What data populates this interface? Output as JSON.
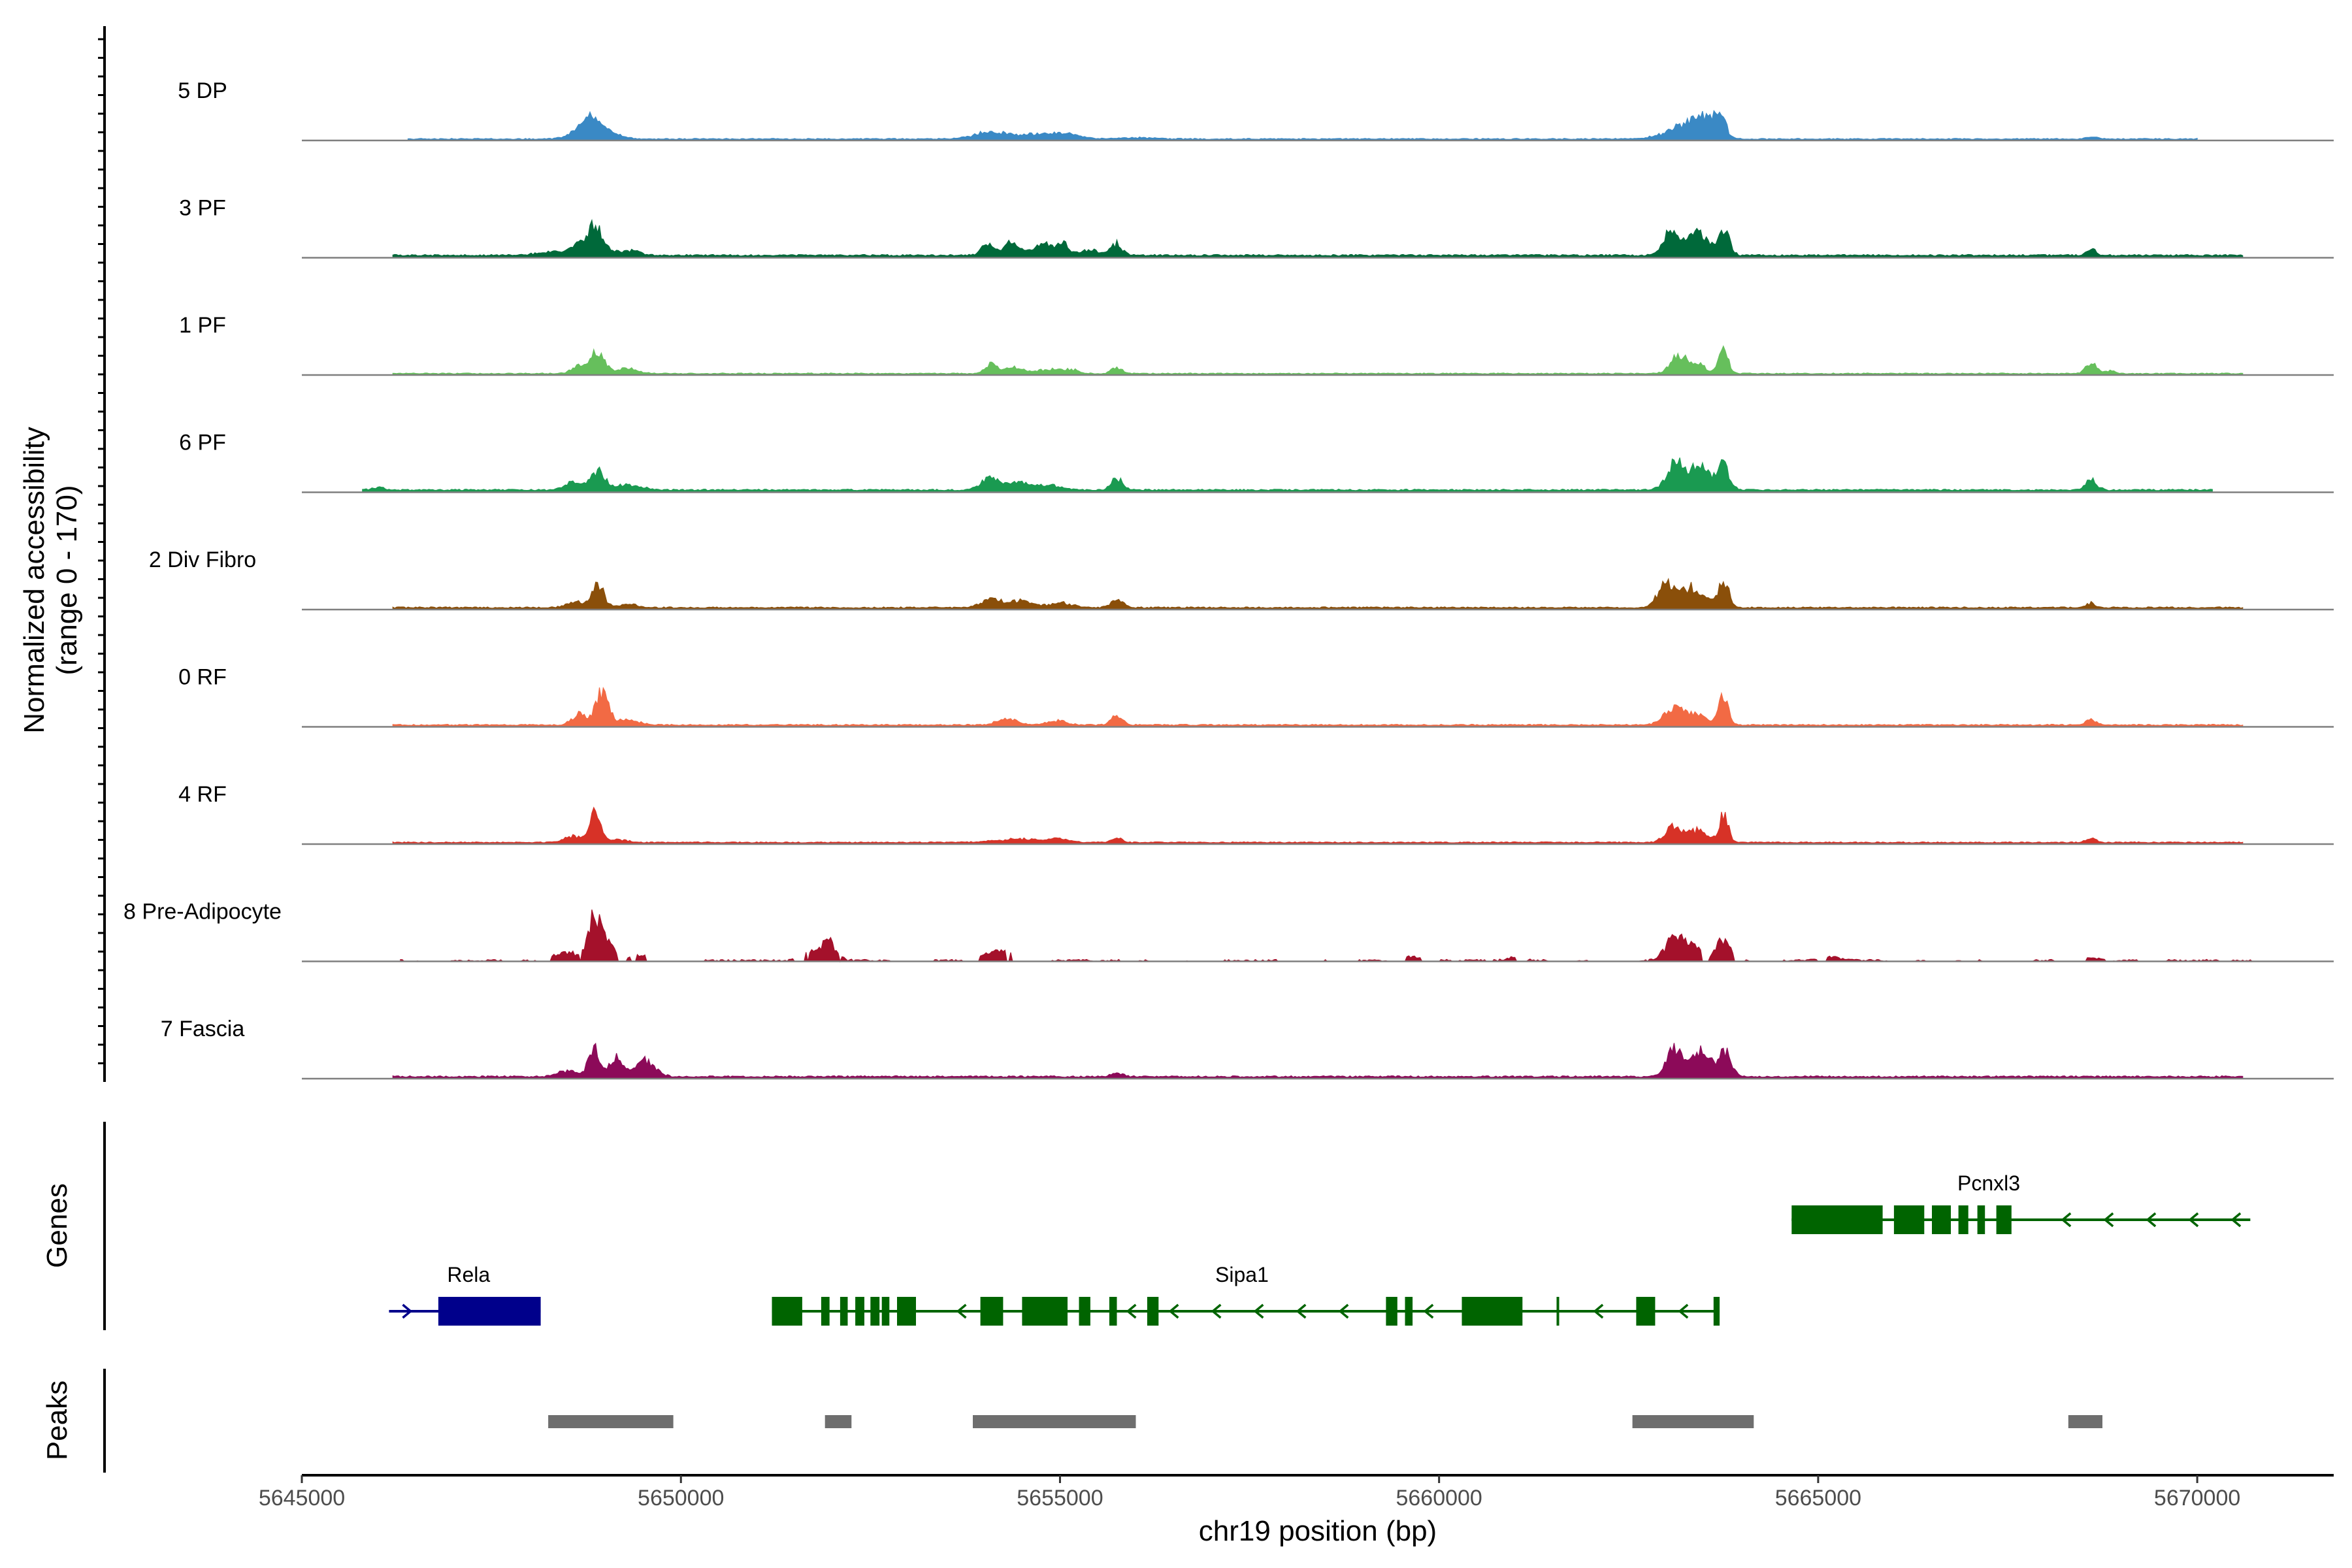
{
  "chart_data": {
    "type": "area",
    "title": "",
    "xlabel": "chr19 position (bp)",
    "ylabel_line1": "Normalized accessibility",
    "ylabel_line2": "(range 0 - 170)",
    "yrange": [
      0,
      170
    ],
    "xlim": [
      5645000,
      5671800
    ],
    "x_ticks": [
      5645000,
      5650000,
      5655000,
      5660000,
      5665000,
      5670000
    ],
    "x_tick_labels": [
      "5645000",
      "5650000",
      "5655000",
      "5660000",
      "5665000",
      "5670000"
    ],
    "genes_label": "Genes",
    "peaks_label": "Peaks",
    "tracks": [
      {
        "name": "5 DP",
        "color": "#3a89c5",
        "ext": [
          5646400,
          5670000
        ],
        "base": 1.5,
        "noise": 1.6,
        "peaks": [
          [
            5648850,
            28,
            110
          ],
          [
            5648700,
            16,
            150
          ],
          [
            5649100,
            10,
            120
          ],
          [
            5654100,
            12,
            220
          ],
          [
            5654800,
            9,
            260
          ],
          [
            5655150,
            5,
            150
          ],
          [
            5656000,
            2,
            250
          ],
          [
            5663200,
            18,
            230
          ],
          [
            5663500,
            24,
            120
          ],
          [
            5663700,
            42,
            75
          ],
          [
            5663350,
            10,
            150
          ],
          [
            5668600,
            4,
            70
          ]
        ]
      },
      {
        "name": "3 PF",
        "color": "#00693a",
        "ext": [
          5646200,
          5670600
        ],
        "base": 2.5,
        "noise": 2.4,
        "peaks": [
          [
            5648880,
            52,
            95
          ],
          [
            5648650,
            16,
            90
          ],
          [
            5648450,
            6,
            300
          ],
          [
            5649300,
            8,
            150
          ],
          [
            5654050,
            18,
            80
          ],
          [
            5654350,
            22,
            75
          ],
          [
            5654800,
            13,
            120
          ],
          [
            5655050,
            16,
            75
          ],
          [
            5655400,
            9,
            120
          ],
          [
            5655750,
            20,
            70
          ],
          [
            5654600,
            6,
            300
          ],
          [
            5663050,
            38,
            100
          ],
          [
            5663350,
            34,
            110
          ],
          [
            5663760,
            44,
            70
          ],
          [
            5663550,
            18,
            100
          ],
          [
            5668600,
            10,
            60
          ]
        ]
      },
      {
        "name": "1 PF",
        "color": "#66bf5c",
        "ext": [
          5646200,
          5670600
        ],
        "base": 1.5,
        "noise": 1.5,
        "peaks": [
          [
            5648900,
            40,
            90
          ],
          [
            5648650,
            12,
            90
          ],
          [
            5649300,
            8,
            140
          ],
          [
            5654100,
            16,
            80
          ],
          [
            5654400,
            10,
            120
          ],
          [
            5654850,
            7,
            160
          ],
          [
            5655150,
            6,
            100
          ],
          [
            5655750,
            10,
            70
          ],
          [
            5663150,
            30,
            100
          ],
          [
            5663400,
            16,
            110
          ],
          [
            5663750,
            40,
            60
          ],
          [
            5668600,
            18,
            70
          ],
          [
            5668850,
            5,
            60
          ]
        ]
      },
      {
        "name": "6 PF",
        "color": "#1a9a51",
        "ext": [
          5645800,
          5670200
        ],
        "base": 2.5,
        "noise": 2.2,
        "peaks": [
          [
            5648900,
            33,
            90
          ],
          [
            5648600,
            14,
            110
          ],
          [
            5649300,
            8,
            180
          ],
          [
            5654100,
            20,
            130
          ],
          [
            5654450,
            14,
            110
          ],
          [
            5654850,
            8,
            170
          ],
          [
            5655750,
            18,
            75
          ],
          [
            5663120,
            50,
            110
          ],
          [
            5663400,
            30,
            110
          ],
          [
            5663750,
            40,
            80
          ],
          [
            5663550,
            16,
            100
          ],
          [
            5668600,
            16,
            75
          ],
          [
            5646000,
            4,
            80
          ]
        ]
      },
      {
        "name": "2 Div Fibro",
        "color": "#8a4f0a",
        "ext": [
          5646200,
          5670600
        ],
        "base": 2,
        "noise": 2,
        "peaks": [
          [
            5648900,
            40,
            80
          ],
          [
            5648600,
            10,
            110
          ],
          [
            5649300,
            6,
            120
          ],
          [
            5654100,
            14,
            140
          ],
          [
            5654500,
            12,
            130
          ],
          [
            5655000,
            8,
            160
          ],
          [
            5655750,
            12,
            80
          ],
          [
            5663000,
            40,
            110
          ],
          [
            5663300,
            30,
            120
          ],
          [
            5663750,
            44,
            70
          ],
          [
            5663500,
            14,
            100
          ],
          [
            5668600,
            8,
            60
          ]
        ]
      },
      {
        "name": "0 RF",
        "color": "#f26a44",
        "ext": [
          5646200,
          5670600
        ],
        "base": 2,
        "noise": 1.8,
        "peaks": [
          [
            5648950,
            52,
            90
          ],
          [
            5648650,
            18,
            90
          ],
          [
            5649300,
            8,
            140
          ],
          [
            5654300,
            10,
            130
          ],
          [
            5654950,
            8,
            120
          ],
          [
            5655750,
            18,
            70
          ],
          [
            5663100,
            28,
            130
          ],
          [
            5663400,
            18,
            110
          ],
          [
            5663750,
            45,
            65
          ],
          [
            5668600,
            10,
            60
          ]
        ]
      },
      {
        "name": "4 RF",
        "color": "#d73227",
        "ext": [
          5646200,
          5670600
        ],
        "base": 1.8,
        "noise": 1.6,
        "peaks": [
          [
            5648880,
            50,
            75
          ],
          [
            5648600,
            10,
            130
          ],
          [
            5649200,
            5,
            100
          ],
          [
            5654500,
            6,
            300
          ],
          [
            5655000,
            5,
            120
          ],
          [
            5655750,
            7,
            70
          ],
          [
            5663100,
            26,
            110
          ],
          [
            5663400,
            20,
            110
          ],
          [
            5663750,
            44,
            65
          ],
          [
            5668600,
            7,
            60
          ]
        ]
      },
      {
        "name": "8 Pre-Adipocyte",
        "color": "#a4112b",
        "ext": [
          5646300,
          5670800
        ],
        "base": 0,
        "noise": 3,
        "gaps": true,
        "peaks": [
          [
            5648850,
            62,
            80
          ],
          [
            5649000,
            35,
            100
          ],
          [
            5648500,
            14,
            150
          ],
          [
            5649400,
            10,
            130
          ],
          [
            5651950,
            32,
            100
          ],
          [
            5651700,
            12,
            120
          ],
          [
            5654250,
            16,
            120
          ],
          [
            5654000,
            8,
            150
          ],
          [
            5663100,
            40,
            110
          ],
          [
            5663350,
            24,
            100
          ],
          [
            5663750,
            36,
            90
          ],
          [
            5659600,
            7,
            120
          ],
          [
            5661000,
            5,
            100
          ],
          [
            5665200,
            5,
            150
          ],
          [
            5668600,
            4,
            100
          ]
        ]
      },
      {
        "name": "7 Fascia",
        "color": "#8c0a59",
        "ext": [
          5646200,
          5670600
        ],
        "base": 2,
        "noise": 2.3,
        "peaks": [
          [
            5648850,
            48,
            70
          ],
          [
            5649150,
            30,
            100
          ],
          [
            5649550,
            28,
            120
          ],
          [
            5648500,
            10,
            120
          ],
          [
            5655750,
            6,
            80
          ],
          [
            5663100,
            48,
            100
          ],
          [
            5663400,
            34,
            110
          ],
          [
            5663780,
            42,
            80
          ],
          [
            5663550,
            20,
            100
          ]
        ]
      }
    ],
    "genes": [
      {
        "name": "Rela",
        "color": "#00008b",
        "row": 2,
        "strand": "+",
        "start": 5646150,
        "end": 5648150,
        "exons": [
          [
            5646800,
            5648150
          ]
        ],
        "label_x": 5647200
      },
      {
        "name": "Sipa1",
        "color": "#006400",
        "row": 2,
        "strand": "-",
        "start": 5651200,
        "end": 5663700,
        "exons": [
          [
            5651200,
            5651600
          ],
          [
            5651850,
            5651960
          ],
          [
            5652100,
            5652200
          ],
          [
            5652300,
            5652420
          ],
          [
            5652500,
            5652620
          ],
          [
            5652650,
            5652750
          ],
          [
            5652850,
            5653100
          ],
          [
            5653950,
            5654250
          ],
          [
            5654500,
            5655100
          ],
          [
            5655250,
            5655400
          ],
          [
            5655650,
            5655750
          ],
          [
            5656150,
            5656300
          ],
          [
            5659300,
            5659450
          ],
          [
            5659550,
            5659650
          ],
          [
            5660300,
            5661100
          ],
          [
            5661550,
            5661580
          ],
          [
            5662600,
            5662850
          ],
          [
            5663620,
            5663700
          ]
        ],
        "label_x": 5657400
      },
      {
        "name": "Pcnxl3",
        "color": "#006400",
        "row": 1,
        "strand": "-",
        "start": 5664650,
        "end": 5670700,
        "exons": [
          [
            5664650,
            5665850
          ],
          [
            5666000,
            5666400
          ],
          [
            5666500,
            5666750
          ],
          [
            5666850,
            5666980
          ],
          [
            5667100,
            5667200
          ],
          [
            5667350,
            5667550
          ]
        ],
        "label_x": 5667250
      }
    ],
    "peaks": [
      [
        5648250,
        5649900
      ],
      [
        5651900,
        5652250
      ],
      [
        5653850,
        5656000
      ],
      [
        5662550,
        5664150
      ],
      [
        5668300,
        5668750
      ]
    ]
  }
}
